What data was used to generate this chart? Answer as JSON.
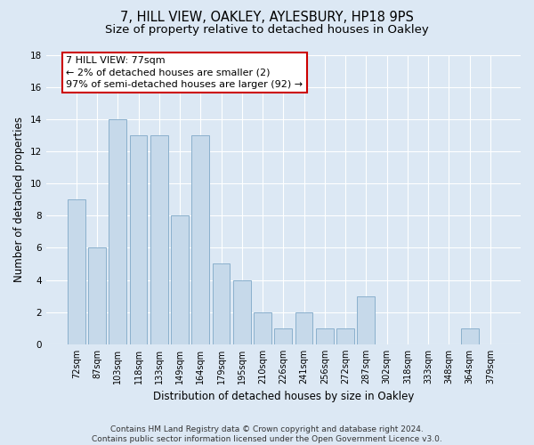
{
  "title": "7, HILL VIEW, OAKLEY, AYLESBURY, HP18 9PS",
  "subtitle": "Size of property relative to detached houses in Oakley",
  "xlabel": "Distribution of detached houses by size in Oakley",
  "ylabel": "Number of detached properties",
  "categories": [
    "72sqm",
    "87sqm",
    "103sqm",
    "118sqm",
    "133sqm",
    "149sqm",
    "164sqm",
    "179sqm",
    "195sqm",
    "210sqm",
    "226sqm",
    "241sqm",
    "256sqm",
    "272sqm",
    "287sqm",
    "302sqm",
    "318sqm",
    "333sqm",
    "348sqm",
    "364sqm",
    "379sqm"
  ],
  "values": [
    9,
    6,
    14,
    13,
    13,
    8,
    13,
    5,
    4,
    2,
    1,
    2,
    1,
    1,
    3,
    0,
    0,
    0,
    0,
    1,
    0
  ],
  "bar_color": "#c6d9ea",
  "bar_edge_color": "#8ab0cc",
  "ylim": [
    0,
    18
  ],
  "yticks": [
    0,
    2,
    4,
    6,
    8,
    10,
    12,
    14,
    16,
    18
  ],
  "annotation_text": "7 HILL VIEW: 77sqm\n← 2% of detached houses are smaller (2)\n97% of semi-detached houses are larger (92) →",
  "annotation_box_color": "#ffffff",
  "annotation_box_edge": "#cc0000",
  "footer": "Contains HM Land Registry data © Crown copyright and database right 2024.\nContains public sector information licensed under the Open Government Licence v3.0.",
  "bg_color": "#dce8f4",
  "plot_bg_color": "#dce8f4",
  "grid_color": "#ffffff",
  "title_fontsize": 10.5,
  "subtitle_fontsize": 9.5,
  "tick_fontsize": 7,
  "ylabel_fontsize": 8.5,
  "xlabel_fontsize": 8.5,
  "annotation_fontsize": 8,
  "footer_fontsize": 6.5
}
